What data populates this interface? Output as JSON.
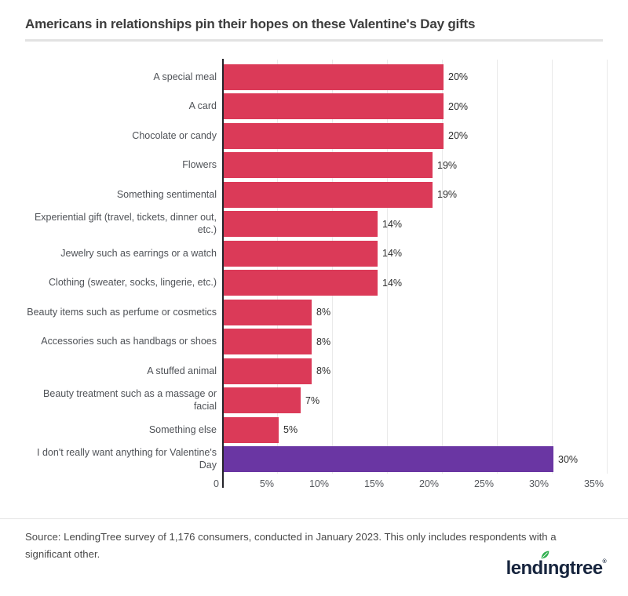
{
  "header": {
    "title": "Americans in relationships pin their hopes on these Valentine's Day gifts"
  },
  "chart_data": {
    "type": "bar",
    "orientation": "horizontal",
    "title": "Americans in relationships pin their hopes on these Valentine's Day gifts",
    "categories": [
      "A special meal",
      "A card",
      "Chocolate or candy",
      "Flowers",
      "Something sentimental",
      "Experiential gift (travel, tickets, dinner out,\netc.)",
      "Jewelry such as earrings or a watch",
      "Clothing (sweater, socks, lingerie, etc.)",
      "Beauty items such as perfume or cosmetics",
      "Accessories such as handbags or shoes",
      "A stuffed animal",
      "Beauty treatment such as a massage or\nfacial",
      "Something else",
      "I don't really want anything for Valentine's\nDay"
    ],
    "values": [
      20,
      20,
      20,
      19,
      19,
      14,
      14,
      14,
      8,
      8,
      8,
      7,
      5,
      30
    ],
    "value_labels": [
      "20%",
      "20%",
      "20%",
      "19%",
      "19%",
      "14%",
      "14%",
      "14%",
      "8%",
      "8%",
      "8%",
      "7%",
      "5%",
      "30%"
    ],
    "bar_color_default": "#DB3A58",
    "bar_color_highlight": "#6A36A3",
    "highlight_index": 13,
    "x_ticks": [
      "0",
      "5%",
      "10%",
      "15%",
      "20%",
      "25%",
      "30%",
      "35%"
    ],
    "xlim": [
      0,
      35
    ],
    "grid": true,
    "legend": "none",
    "xlabel": "",
    "ylabel": ""
  },
  "footer": {
    "source_text": "Source: LendingTree survey of 1,176 consumers, conducted in January 2023. This only includes respondents with a significant other."
  },
  "logo": {
    "brand": "lendingtree",
    "part1": "lend",
    "dotless_i": "ı",
    "part2": "ngtree",
    "reg": "®",
    "navy": "#17253e",
    "leaf_green": "#2FB04F"
  }
}
